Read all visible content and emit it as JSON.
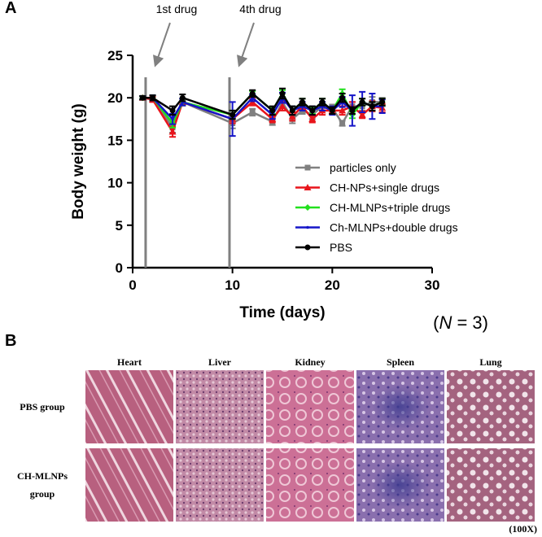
{
  "chart_data": {
    "type": "line",
    "panel_label": "A",
    "xlabel": "Time (days)",
    "ylabel": "Body weight (g)",
    "x": [
      1,
      2,
      4,
      5,
      10,
      12,
      14,
      15,
      16,
      17,
      18,
      19,
      20,
      21,
      22,
      23,
      24,
      25
    ],
    "xlim": [
      0,
      30
    ],
    "xticks": [
      0,
      10,
      20,
      30
    ],
    "ylim": [
      0,
      25
    ],
    "yticks": [
      0,
      5,
      10,
      15,
      20,
      25
    ],
    "annotations": [
      {
        "text": "1st drug",
        "x": 1.3
      },
      {
        "text": "4th drug",
        "x": 9.7
      }
    ],
    "note": [
      "(",
      "N",
      " = 3)"
    ],
    "series": [
      {
        "name": "particles only",
        "color": "#808080",
        "marker": "square",
        "values": [
          20,
          20,
          16.5,
          19.5,
          17,
          18.3,
          17.2,
          19.5,
          17.5,
          18.5,
          18,
          19,
          18.8,
          17,
          19,
          19,
          19.5,
          19.5
        ],
        "errors": [
          0.2,
          0.3,
          0.6,
          0.4,
          0.6,
          0.4,
          0.4,
          0.5,
          0.5,
          0.4,
          0.5,
          0.5,
          0.4,
          0.3,
          0.5,
          0.5,
          0.6,
          0.5
        ]
      },
      {
        "name": "CH-NPs+single drugs",
        "color": "#e8141b",
        "marker": "triangle",
        "values": [
          20,
          19.8,
          16,
          19.5,
          17.5,
          19.5,
          17.5,
          19,
          17.8,
          19,
          17.5,
          18.5,
          18.5,
          18.5,
          19,
          18,
          19,
          18.8
        ],
        "errors": [
          0.2,
          0.3,
          0.6,
          0.4,
          0.5,
          0.4,
          0.4,
          0.5,
          0.5,
          0.4,
          0.4,
          0.5,
          0.4,
          0.5,
          0.5,
          0.4,
          0.6,
          0.5
        ]
      },
      {
        "name": "CH-MLNPs+triple drugs",
        "color": "#22e01e",
        "marker": "diamond",
        "values": [
          20,
          20,
          17,
          19.5,
          18,
          20.5,
          18.5,
          20.5,
          18.5,
          19.5,
          18.5,
          19.5,
          18.5,
          20.5,
          18,
          19.5,
          19,
          19.5
        ],
        "errors": [
          0.2,
          0.3,
          0.5,
          0.4,
          0.5,
          0.3,
          0.4,
          0.4,
          0.5,
          0.4,
          0.4,
          0.4,
          0.4,
          0.5,
          0.4,
          0.4,
          0.5,
          0.4
        ]
      },
      {
        "name": "Ch-MLNPs+double drugs",
        "color": "#1515c8",
        "marker": "dot",
        "values": [
          20,
          20,
          17.5,
          19.5,
          17.5,
          20,
          18,
          20,
          18.5,
          19,
          18.5,
          19,
          18.5,
          19.5,
          18.5,
          19.5,
          19,
          19
        ],
        "errors": [
          0.2,
          0.3,
          0.6,
          0.4,
          2,
          0.4,
          0.5,
          0.6,
          0.5,
          0.5,
          0.5,
          0.5,
          0.5,
          0.6,
          1.8,
          1.2,
          1.5,
          0.8
        ]
      },
      {
        "name": "PBS",
        "color": "#000000",
        "marker": "circle",
        "values": [
          20,
          20,
          18.5,
          20,
          18,
          20.5,
          18.5,
          20.5,
          18.5,
          19.5,
          18.5,
          19.5,
          18.5,
          20,
          18.5,
          19.5,
          19,
          19.5
        ],
        "errors": [
          0.2,
          0.3,
          0.5,
          0.4,
          0.5,
          0.4,
          0.5,
          0.6,
          0.5,
          0.4,
          0.5,
          0.4,
          0.4,
          0.5,
          0.4,
          0.4,
          0.5,
          0.4
        ]
      }
    ]
  },
  "histology": {
    "panel_label": "B",
    "columns": [
      "Heart",
      "Liver",
      "Kidney",
      "Spleen",
      "Lung"
    ],
    "rows": [
      [
        "PBS group"
      ],
      [
        "CH-MLNPs",
        "group"
      ]
    ],
    "magnification": "(100X)"
  }
}
